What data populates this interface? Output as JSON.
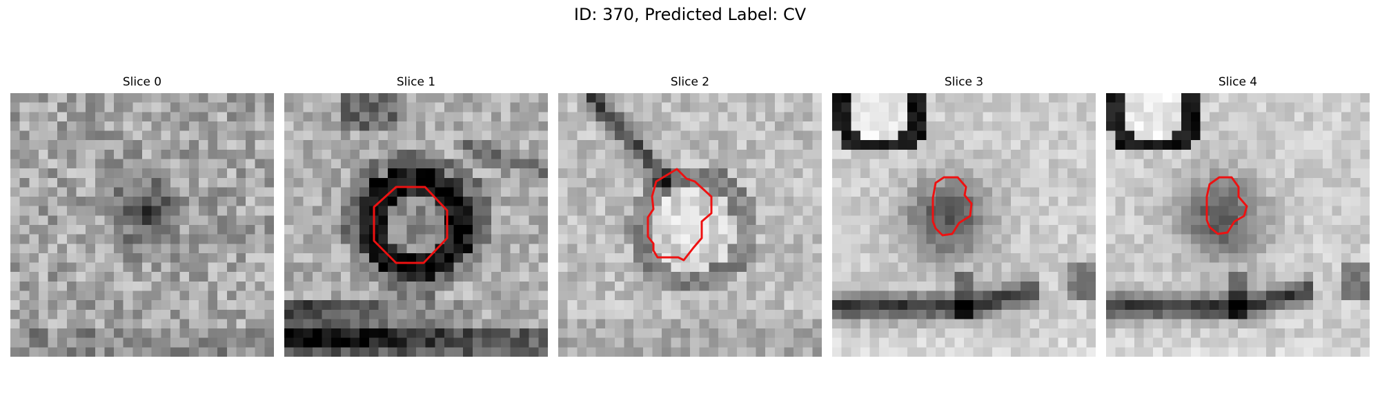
{
  "figure": {
    "title": "ID: 370, Predicted Label: CV"
  },
  "slices": [
    {
      "title": "Slice 0"
    },
    {
      "title": "Slice 1"
    },
    {
      "title": "Slice 2"
    },
    {
      "title": "Slice 3"
    },
    {
      "title": "Slice 4"
    }
  ],
  "colors": {
    "contour": "#ee1111",
    "background": "#ffffff"
  },
  "colormap": "gray"
}
